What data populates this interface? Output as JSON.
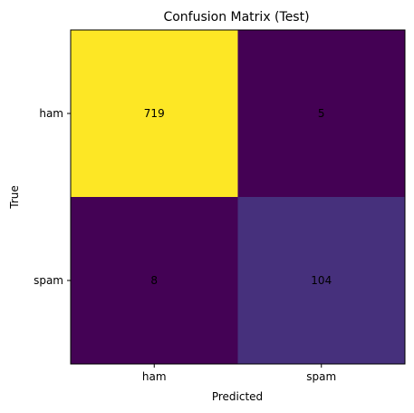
{
  "chart_data": {
    "type": "heatmap",
    "title": "Confusion Matrix (Test)",
    "xlabel": "Predicted",
    "ylabel": "True",
    "x_categories": [
      "ham",
      "spam"
    ],
    "y_categories": [
      "ham",
      "spam"
    ],
    "matrix": [
      [
        719,
        5
      ],
      [
        8,
        104
      ]
    ],
    "colormap": "viridis",
    "color_range": [
      5,
      719
    ],
    "grid": false,
    "legend": "none"
  }
}
